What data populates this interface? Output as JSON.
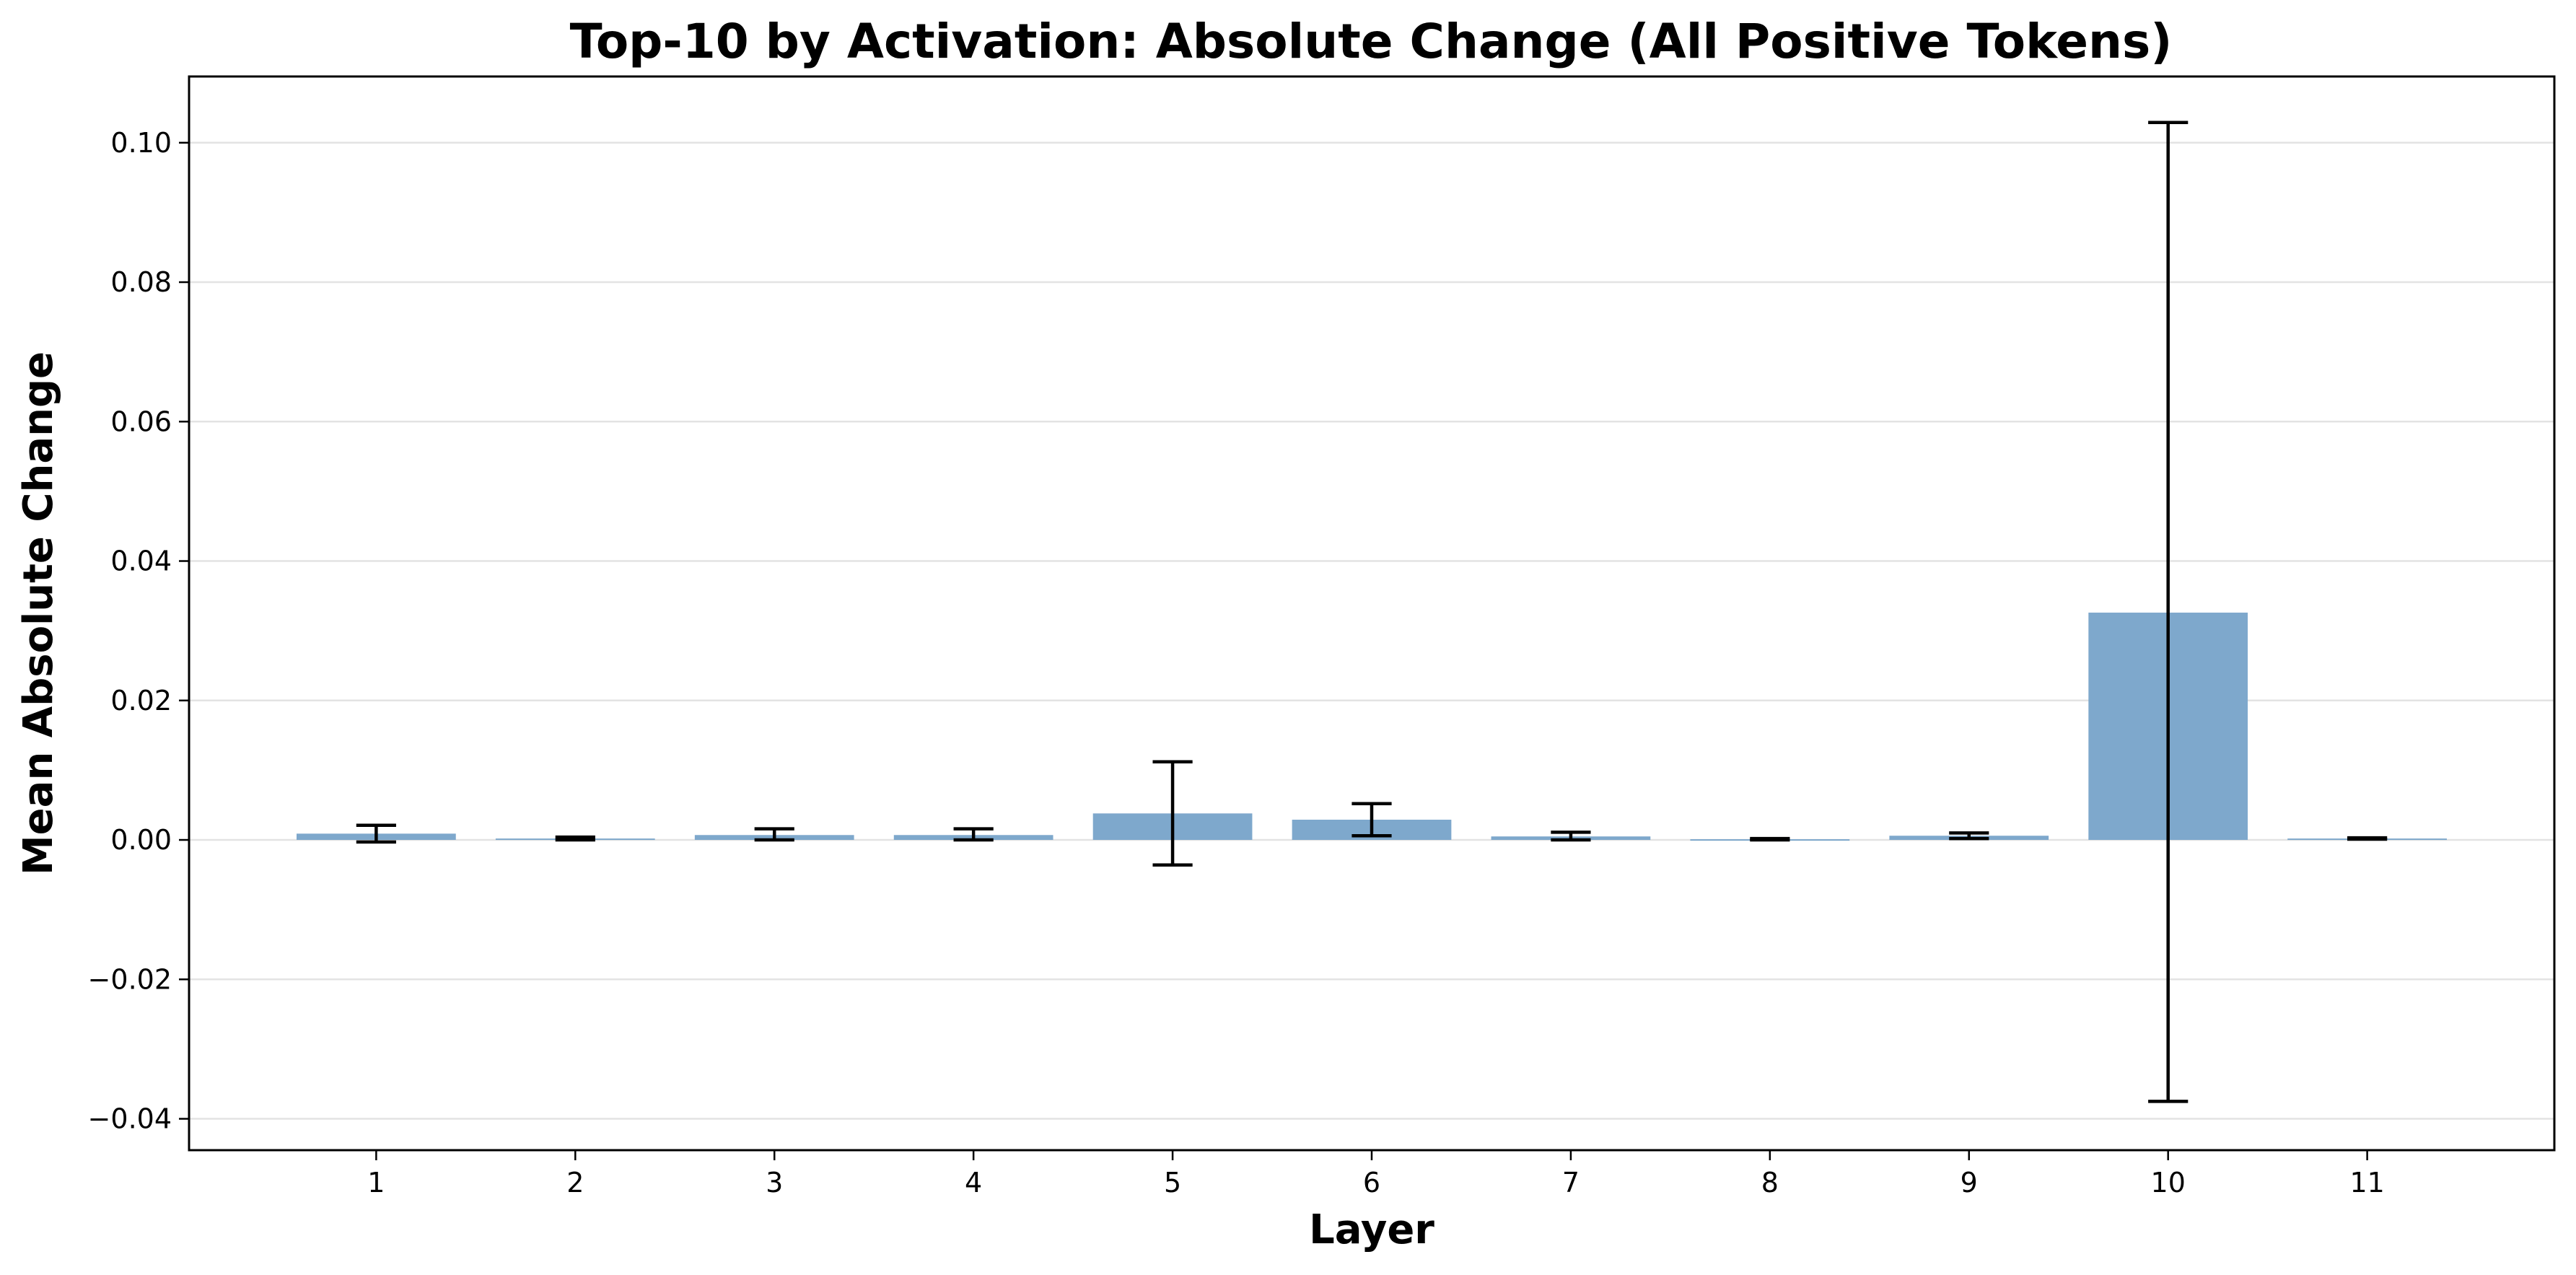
{
  "chart_data": {
    "type": "bar",
    "title": "Top-10 by Activation: Absolute Change (All Positive Tokens)",
    "xlabel": "Layer",
    "ylabel": "Mean Absolute Change",
    "categories": [
      "1",
      "2",
      "3",
      "4",
      "5",
      "6",
      "7",
      "8",
      "9",
      "10",
      "11"
    ],
    "values": [
      0.0009,
      0.0002,
      0.0007,
      0.0007,
      0.0038,
      0.0029,
      0.0005,
      0.0001,
      0.0006,
      0.0326,
      0.0002
    ],
    "error_low": [
      -0.0003,
      0.0,
      0.0,
      0.0,
      -0.0036,
      0.0006,
      0.0,
      0.0,
      0.0002,
      -0.0375,
      0.0001
    ],
    "error_high": [
      0.0021,
      0.0004,
      0.0016,
      0.0016,
      0.0112,
      0.0052,
      0.0011,
      0.0002,
      0.001,
      0.1029,
      0.0003
    ],
    "ylim": [
      -0.0445,
      0.1095
    ],
    "yticks": [
      -0.04,
      -0.02,
      0.0,
      0.02,
      0.04,
      0.06,
      0.08,
      0.1
    ],
    "ytick_labels": [
      "−0.04",
      "−0.02",
      "0.00",
      "0.02",
      "0.04",
      "0.06",
      "0.08",
      "0.10"
    ],
    "grid": "horizontal",
    "legend": "none",
    "colors": {
      "bar": "#7ea8cc",
      "error_bar": "#000000",
      "grid": "#e3e3e3"
    }
  }
}
